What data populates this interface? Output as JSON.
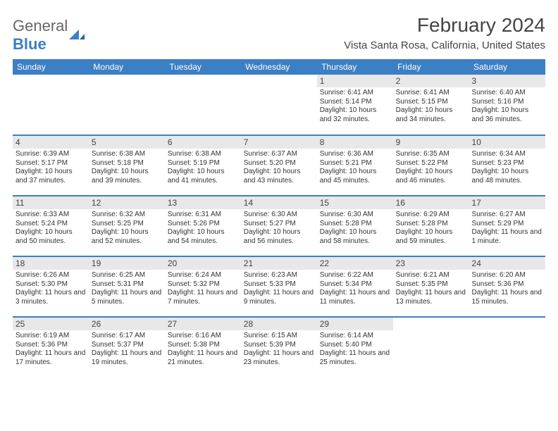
{
  "logo": {
    "text1": "General",
    "text2": "Blue"
  },
  "title": "February 2024",
  "location": "Vista Santa Rosa, California, United States",
  "colors": {
    "header_bg": "#3b7fc4",
    "header_text": "#ffffff",
    "daynum_bg": "#e8e8e8",
    "row_divider": "#3b7fc4",
    "text": "#333333",
    "title_text": "#444444",
    "logo_gray": "#666666",
    "logo_blue": "#3b7fc4",
    "background": "#ffffff"
  },
  "fonts": {
    "title_pt": 28,
    "location_pt": 15,
    "weekday_pt": 12,
    "daynum_pt": 12,
    "body_pt": 10
  },
  "weekdays": [
    "Sunday",
    "Monday",
    "Tuesday",
    "Wednesday",
    "Thursday",
    "Friday",
    "Saturday"
  ],
  "grid": {
    "rows": 5,
    "cols": 7,
    "first_weekday_index": 4,
    "days_in_month": 29
  },
  "days": [
    {
      "n": 1,
      "sunrise": "6:41 AM",
      "sunset": "5:14 PM",
      "daylight": "10 hours and 32 minutes."
    },
    {
      "n": 2,
      "sunrise": "6:41 AM",
      "sunset": "5:15 PM",
      "daylight": "10 hours and 34 minutes."
    },
    {
      "n": 3,
      "sunrise": "6:40 AM",
      "sunset": "5:16 PM",
      "daylight": "10 hours and 36 minutes."
    },
    {
      "n": 4,
      "sunrise": "6:39 AM",
      "sunset": "5:17 PM",
      "daylight": "10 hours and 37 minutes."
    },
    {
      "n": 5,
      "sunrise": "6:38 AM",
      "sunset": "5:18 PM",
      "daylight": "10 hours and 39 minutes."
    },
    {
      "n": 6,
      "sunrise": "6:38 AM",
      "sunset": "5:19 PM",
      "daylight": "10 hours and 41 minutes."
    },
    {
      "n": 7,
      "sunrise": "6:37 AM",
      "sunset": "5:20 PM",
      "daylight": "10 hours and 43 minutes."
    },
    {
      "n": 8,
      "sunrise": "6:36 AM",
      "sunset": "5:21 PM",
      "daylight": "10 hours and 45 minutes."
    },
    {
      "n": 9,
      "sunrise": "6:35 AM",
      "sunset": "5:22 PM",
      "daylight": "10 hours and 46 minutes."
    },
    {
      "n": 10,
      "sunrise": "6:34 AM",
      "sunset": "5:23 PM",
      "daylight": "10 hours and 48 minutes."
    },
    {
      "n": 11,
      "sunrise": "6:33 AM",
      "sunset": "5:24 PM",
      "daylight": "10 hours and 50 minutes."
    },
    {
      "n": 12,
      "sunrise": "6:32 AM",
      "sunset": "5:25 PM",
      "daylight": "10 hours and 52 minutes."
    },
    {
      "n": 13,
      "sunrise": "6:31 AM",
      "sunset": "5:26 PM",
      "daylight": "10 hours and 54 minutes."
    },
    {
      "n": 14,
      "sunrise": "6:30 AM",
      "sunset": "5:27 PM",
      "daylight": "10 hours and 56 minutes."
    },
    {
      "n": 15,
      "sunrise": "6:30 AM",
      "sunset": "5:28 PM",
      "daylight": "10 hours and 58 minutes."
    },
    {
      "n": 16,
      "sunrise": "6:29 AM",
      "sunset": "5:28 PM",
      "daylight": "10 hours and 59 minutes."
    },
    {
      "n": 17,
      "sunrise": "6:27 AM",
      "sunset": "5:29 PM",
      "daylight": "11 hours and 1 minute."
    },
    {
      "n": 18,
      "sunrise": "6:26 AM",
      "sunset": "5:30 PM",
      "daylight": "11 hours and 3 minutes."
    },
    {
      "n": 19,
      "sunrise": "6:25 AM",
      "sunset": "5:31 PM",
      "daylight": "11 hours and 5 minutes."
    },
    {
      "n": 20,
      "sunrise": "6:24 AM",
      "sunset": "5:32 PM",
      "daylight": "11 hours and 7 minutes."
    },
    {
      "n": 21,
      "sunrise": "6:23 AM",
      "sunset": "5:33 PM",
      "daylight": "11 hours and 9 minutes."
    },
    {
      "n": 22,
      "sunrise": "6:22 AM",
      "sunset": "5:34 PM",
      "daylight": "11 hours and 11 minutes."
    },
    {
      "n": 23,
      "sunrise": "6:21 AM",
      "sunset": "5:35 PM",
      "daylight": "11 hours and 13 minutes."
    },
    {
      "n": 24,
      "sunrise": "6:20 AM",
      "sunset": "5:36 PM",
      "daylight": "11 hours and 15 minutes."
    },
    {
      "n": 25,
      "sunrise": "6:19 AM",
      "sunset": "5:36 PM",
      "daylight": "11 hours and 17 minutes."
    },
    {
      "n": 26,
      "sunrise": "6:17 AM",
      "sunset": "5:37 PM",
      "daylight": "11 hours and 19 minutes."
    },
    {
      "n": 27,
      "sunrise": "6:16 AM",
      "sunset": "5:38 PM",
      "daylight": "11 hours and 21 minutes."
    },
    {
      "n": 28,
      "sunrise": "6:15 AM",
      "sunset": "5:39 PM",
      "daylight": "11 hours and 23 minutes."
    },
    {
      "n": 29,
      "sunrise": "6:14 AM",
      "sunset": "5:40 PM",
      "daylight": "11 hours and 25 minutes."
    }
  ],
  "labels": {
    "sunrise": "Sunrise:",
    "sunset": "Sunset:",
    "daylight": "Daylight:"
  }
}
